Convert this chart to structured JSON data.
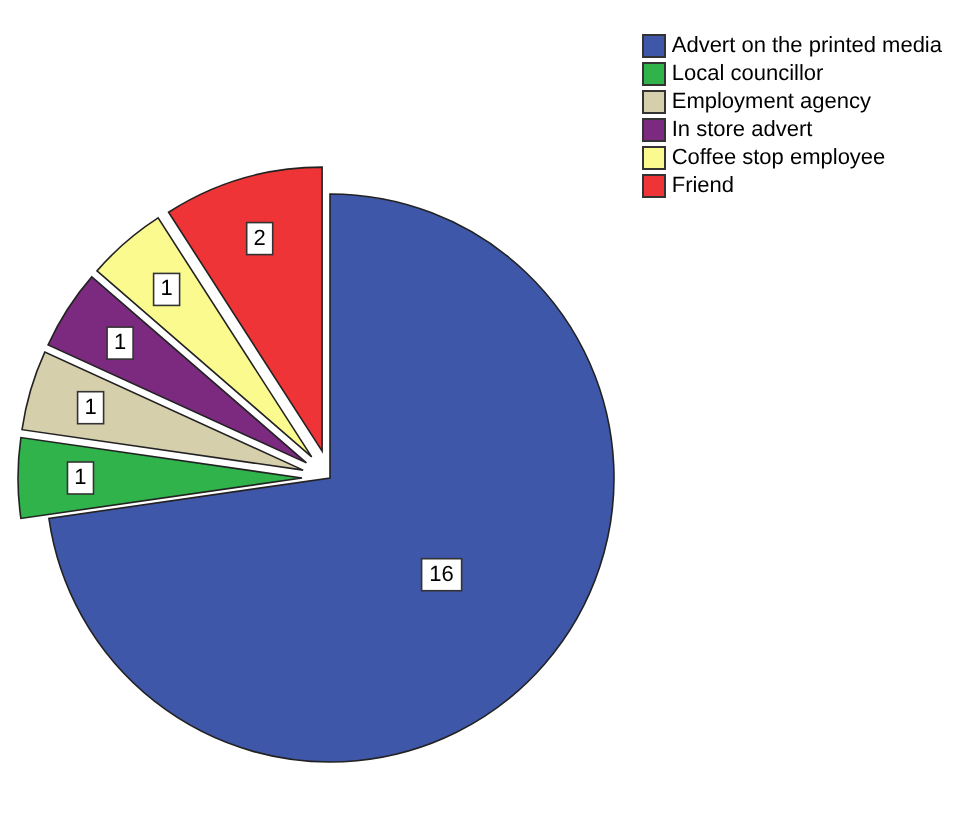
{
  "chart_data": {
    "type": "pie",
    "categories": [
      "Advert on the printed media",
      "Local councillor",
      "Employment agency",
      "In store advert",
      "Coffee stop employee",
      "Friend"
    ],
    "values": [
      16,
      1,
      1,
      1,
      1,
      2
    ],
    "colors": [
      "#3f57a8",
      "#2fb34a",
      "#d5cfac",
      "#7b2a80",
      "#fbfa8e",
      "#ee3436"
    ],
    "data_labels": true,
    "legend": "top right"
  }
}
